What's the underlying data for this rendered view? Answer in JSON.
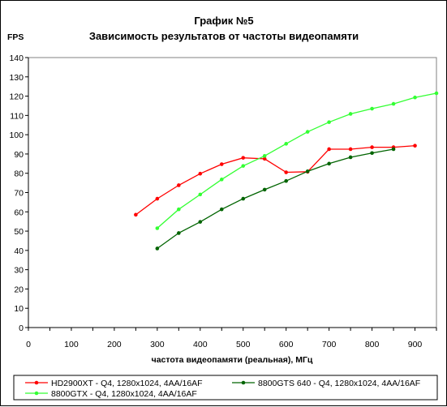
{
  "chart_data": {
    "type": "line",
    "title": "График №5",
    "subtitle": "Зависимость результатов от частоты видеопамяти",
    "ylabel": "FPS",
    "xlabel": "частота видеопамяти (реальная), МГц",
    "xlim": [
      0,
      950
    ],
    "ylim": [
      0,
      140
    ],
    "x_ticks": [
      0,
      100,
      200,
      300,
      400,
      500,
      600,
      700,
      800,
      900
    ],
    "y_ticks": [
      0,
      10,
      20,
      30,
      40,
      50,
      60,
      70,
      80,
      90,
      100,
      110,
      120,
      130,
      140
    ],
    "grid": false,
    "legend_position": "bottom",
    "series": [
      {
        "name": "HD2900XT - Q4, 1280x1024, 4AA/16AF",
        "color": "#ff0000",
        "x": [
          250,
          300,
          350,
          400,
          450,
          500,
          550,
          600,
          650,
          700,
          750,
          800,
          850,
          900
        ],
        "values": [
          58.5,
          66.8,
          73.8,
          79.8,
          84.7,
          88.0,
          87.5,
          80.5,
          80.8,
          92.5,
          92.5,
          93.5,
          93.5,
          94.3
        ]
      },
      {
        "name": "8800GTS 640 - Q4, 1280x1024, 4AA/16AF",
        "color": "#006400",
        "x": [
          300,
          350,
          400,
          450,
          500,
          550,
          600,
          650,
          700,
          750,
          800,
          850
        ],
        "values": [
          41.0,
          49.0,
          54.8,
          61.3,
          66.8,
          71.5,
          76.0,
          81.0,
          85.0,
          88.3,
          90.5,
          92.5
        ]
      },
      {
        "name": "8800GTX - Q4, 1280x1024, 4AA/16AF",
        "color": "#33ff33",
        "x": [
          300,
          350,
          400,
          450,
          500,
          550,
          600,
          650,
          700,
          750,
          800,
          850,
          900,
          950
        ],
        "values": [
          51.5,
          61.3,
          69.0,
          76.8,
          83.8,
          89.0,
          95.3,
          101.5,
          106.5,
          110.8,
          113.5,
          116.0,
          119.3,
          121.5
        ]
      }
    ]
  }
}
